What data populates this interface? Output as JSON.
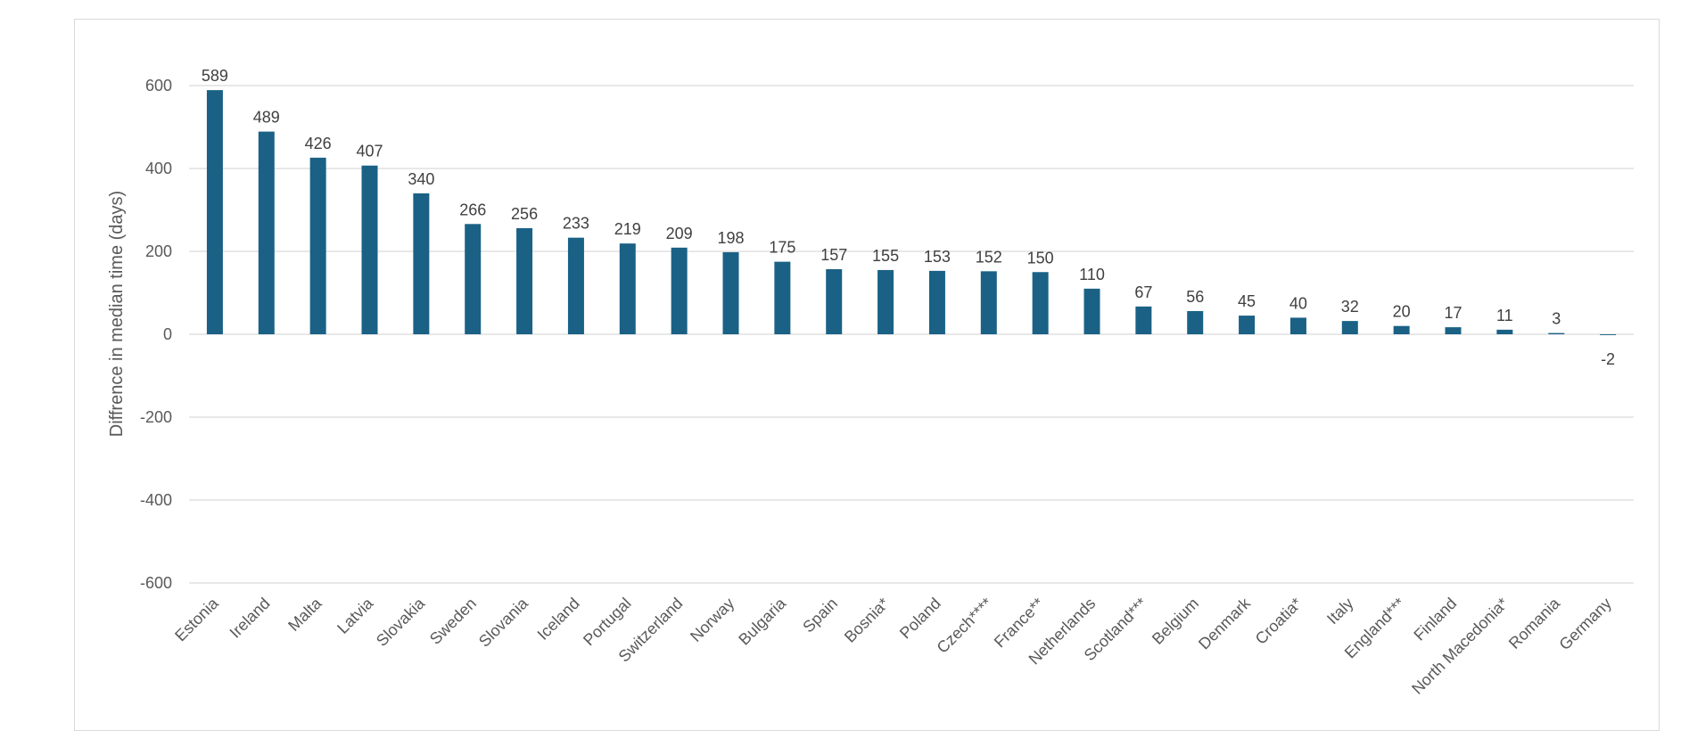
{
  "chart_data": {
    "type": "bar",
    "title": "",
    "xlabel": "",
    "ylabel": "Diffrence in median time (days)",
    "ylim": [
      -600,
      600
    ],
    "yticks": [
      600,
      400,
      200,
      0,
      -200,
      -400,
      -600
    ],
    "grid": true,
    "legend": "none",
    "bar_color": "#1a6185",
    "gridline_color": "#d9d9d9",
    "categories": [
      "Estonia",
      "Ireland",
      "Malta",
      "Latvia",
      "Slovakia",
      "Sweden",
      "Slovania",
      "Iceland",
      "Portugal",
      "Switzerland",
      "Norway",
      "Bulgaria",
      "Spain",
      "Bosnia*",
      "Poland",
      "Czech****",
      "France**",
      "Netherlands",
      "Scotland***",
      "Belgium",
      "Denmark",
      "Croatia*",
      "Italy",
      "England***",
      "Finland",
      "North Macedonia*",
      "Romania",
      "Germany"
    ],
    "values": [
      589,
      489,
      426,
      407,
      340,
      266,
      256,
      233,
      219,
      209,
      198,
      175,
      157,
      155,
      153,
      152,
      150,
      110,
      67,
      56,
      45,
      40,
      32,
      20,
      17,
      11,
      3,
      -2
    ]
  }
}
